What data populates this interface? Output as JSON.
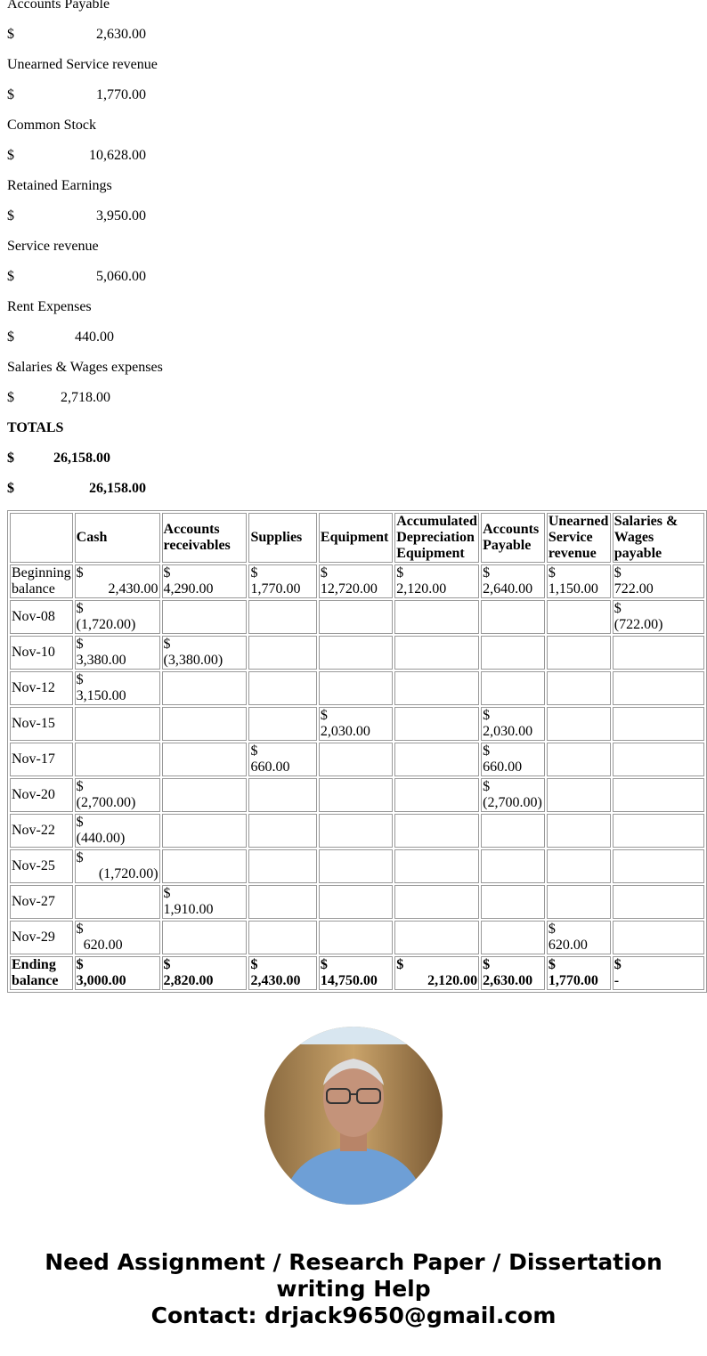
{
  "ledger": {
    "items": [
      {
        "label": "Accounts Payable",
        "currency": "$",
        "amount": "2,630.00"
      },
      {
        "label": "Unearned Service revenue",
        "currency": "$",
        "amount": "1,770.00"
      },
      {
        "label": "Common Stock",
        "currency": "$",
        "amount": "10,628.00"
      },
      {
        "label": "Retained Earnings",
        "currency": "$",
        "amount": "3,950.00"
      },
      {
        "label": "Service revenue",
        "currency": "$",
        "amount": "5,060.00"
      },
      {
        "label": "Rent Expenses",
        "currency": "$",
        "amount": "440.00"
      },
      {
        "label": "Salaries & Wages expenses",
        "currency": "$",
        "amount": "2,718.00"
      }
    ],
    "totals": {
      "label": "TOTALS",
      "lines": [
        {
          "currency": "$",
          "amount": "26,158.00"
        },
        {
          "currency": "$",
          "amount": "26,158.00"
        }
      ]
    }
  },
  "table": {
    "header": [
      null,
      "Cash",
      "Accounts receivables",
      "Supplies",
      "Equipment",
      "Accumulated Depreciation Equipment",
      "Accounts Payable",
      "Unearned Service revenue",
      "Salaries & Wages payable"
    ],
    "rows": [
      [
        "Beginning balance",
        [
          "$",
          "2,430.00"
        ],
        [
          "$",
          "4,290.00"
        ],
        [
          "$",
          "1,770.00"
        ],
        [
          "$",
          "12,720.00"
        ],
        [
          "$",
          "2,120.00"
        ],
        [
          "$",
          "2,640.00"
        ],
        [
          "$",
          "1,150.00"
        ],
        [
          "$",
          "722.00"
        ]
      ],
      [
        "Nov-08",
        [
          "$",
          "(1,720.00)"
        ],
        null,
        null,
        null,
        null,
        null,
        null,
        [
          "$",
          "(722.00)"
        ]
      ],
      [
        "Nov-10",
        [
          "$",
          "3,380.00"
        ],
        [
          "$",
          "(3,380.00)"
        ],
        null,
        null,
        null,
        null,
        null,
        null
      ],
      [
        "Nov-12",
        [
          "$",
          "3,150.00"
        ],
        null,
        null,
        null,
        null,
        null,
        null,
        null
      ],
      [
        "Nov-15",
        null,
        null,
        null,
        [
          "$",
          "2,030.00"
        ],
        null,
        [
          "$",
          "2,030.00"
        ],
        null,
        null
      ],
      [
        "Nov-17",
        null,
        null,
        [
          "$",
          "660.00"
        ],
        null,
        null,
        [
          "$",
          "660.00"
        ],
        null,
        null
      ],
      [
        "Nov-20",
        [
          "$",
          "(2,700.00)"
        ],
        null,
        null,
        null,
        null,
        [
          "$",
          "(2,700.00)"
        ],
        null,
        null
      ],
      [
        "Nov-22",
        [
          "$",
          "(440.00)"
        ],
        null,
        null,
        null,
        null,
        null,
        null,
        null
      ],
      [
        "Nov-25",
        [
          "$",
          "(1,720.00)"
        ],
        null,
        null,
        null,
        null,
        null,
        null,
        null
      ],
      [
        "Nov-27",
        null,
        [
          "$",
          "1,910.00"
        ],
        null,
        null,
        null,
        null,
        null,
        null
      ],
      [
        "Nov-29",
        [
          "$",
          "620.00"
        ],
        null,
        null,
        null,
        null,
        null,
        [
          "$",
          "620.00"
        ],
        null
      ],
      [
        "Ending balance",
        [
          "$",
          "3,000.00"
        ],
        [
          "$",
          "2,820.00"
        ],
        [
          "$",
          "2,430.00"
        ],
        [
          "$",
          "14,750.00"
        ],
        [
          "$",
          "2,120.00"
        ],
        [
          "$",
          "2,630.00"
        ],
        [
          "$",
          "1,770.00"
        ],
        [
          "$",
          "-"
        ]
      ]
    ]
  },
  "footer": {
    "lines": [
      "Need Assignment / Research Paper / Dissertation",
      "writing Help",
      "Contact: drjack9650@gmail.com"
    ]
  }
}
